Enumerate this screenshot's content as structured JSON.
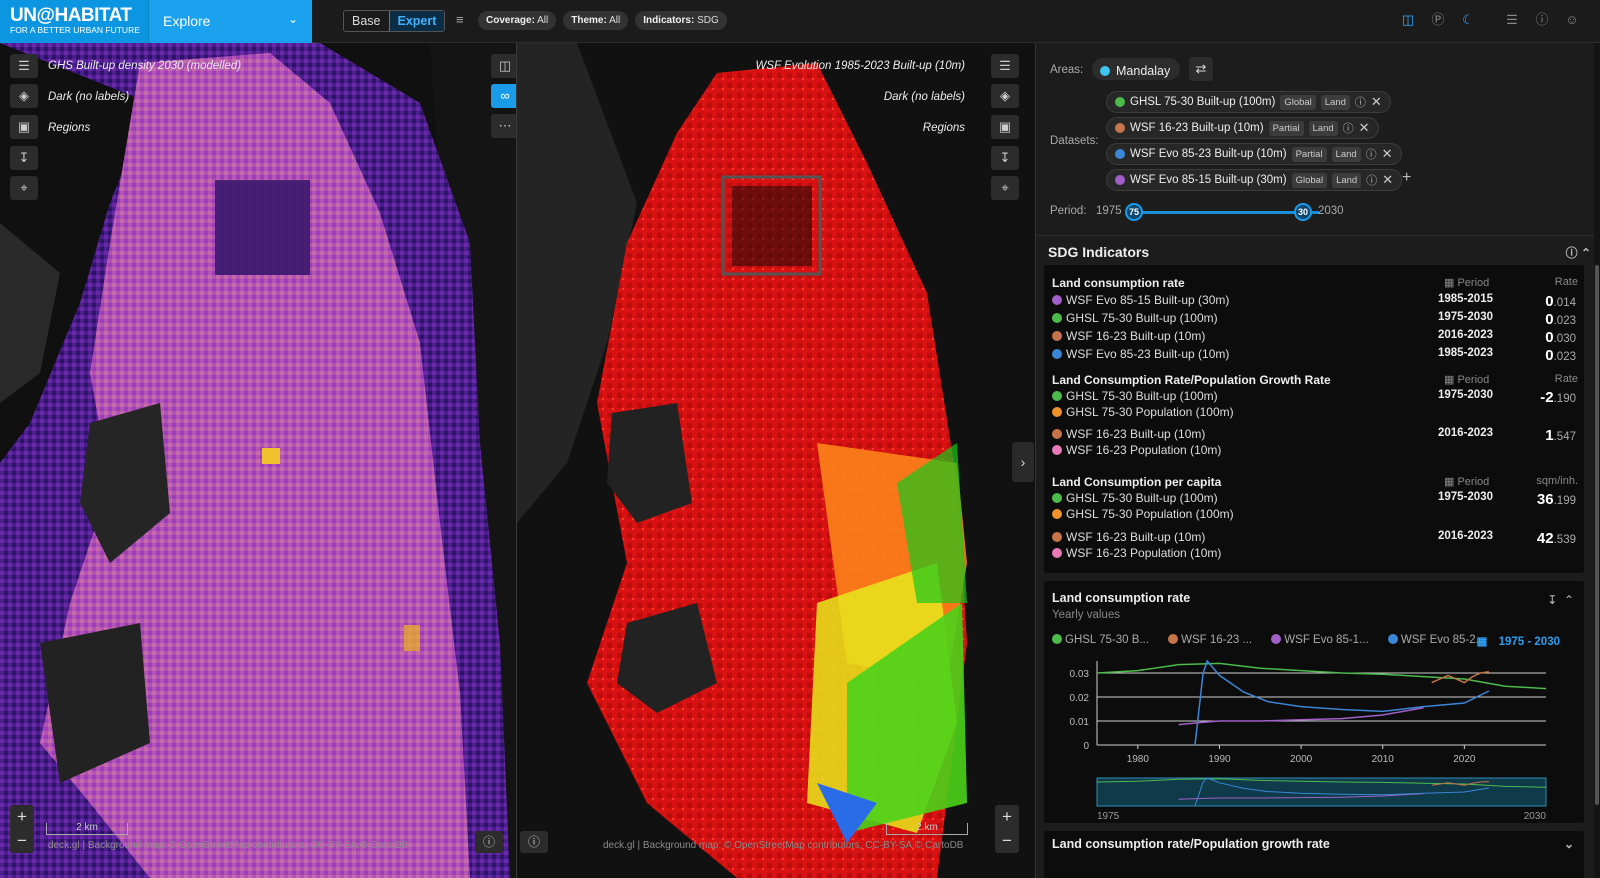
{
  "header": {
    "brand_name": "UN@HABITAT",
    "brand_tagline": "FOR A BETTER URBAN FUTURE",
    "nav_label": "Explore",
    "modes": [
      "Base",
      "Expert"
    ],
    "active_mode": "Expert",
    "chips": [
      {
        "label": "Coverage:",
        "value": "All"
      },
      {
        "label": "Theme:",
        "value": "All"
      },
      {
        "label": "Indicators:",
        "value": "SDG"
      }
    ]
  },
  "map_left": {
    "layer_label": "GHS Built-up density 2030 (modelled)",
    "basemap_label": "Dark (no labels)",
    "regions_label": "Regions",
    "scale_label": "2 km",
    "attribution": "deck.gl | Background map: © OpenStreetMap contributors, CC-BY-SA,© CartoDB"
  },
  "map_right": {
    "layer_label": "WSF Evolution 1985-2023 Built-up (10m)",
    "basemap_label": "Dark (no labels)",
    "regions_label": "Regions",
    "scale_label": "2 km",
    "attribution": "deck.gl | Background map: © OpenStreetMap contributors, CC-BY-SA,© CartoDB"
  },
  "panel": {
    "areas_label": "Areas:",
    "area": {
      "name": "Mandalay",
      "color": "#3ec6f0"
    },
    "datasets_label": "Datasets:",
    "datasets": [
      {
        "name": "GHSL 75-30 Built-up (100m)",
        "coverage": "Global",
        "theme": "Land",
        "color": "#4cbb4c"
      },
      {
        "name": "WSF 16-23 Built-up (10m)",
        "coverage": "Partial",
        "theme": "Land",
        "color": "#c8744a"
      },
      {
        "name": "WSF Evo 85-23 Built-up (10m)",
        "coverage": "Partial",
        "theme": "Land",
        "color": "#3b86d6"
      },
      {
        "name": "WSF Evo 85-15 Built-up (30m)",
        "coverage": "Global",
        "theme": "Land",
        "color": "#a060c8"
      }
    ],
    "period_label": "Period:",
    "period_min": "1975",
    "period_max": "2030",
    "period_start": "75",
    "period_end": "30",
    "sdg_title": "SDG Indicators"
  },
  "indicators": [
    {
      "title": "Land consumption rate",
      "period_head": "Period",
      "unit_head": "Rate",
      "rows": [
        {
          "names": [
            "WSF Evo 85-15 Built-up (30m)"
          ],
          "colors": [
            "#a060c8"
          ],
          "period": "1985-2015",
          "int": "0",
          "dec": ".014"
        },
        {
          "names": [
            "GHSL 75-30 Built-up (100m)"
          ],
          "colors": [
            "#4cbb4c"
          ],
          "period": "1975-2030",
          "int": "0",
          "dec": ".023"
        },
        {
          "names": [
            "WSF 16-23 Built-up (10m)"
          ],
          "colors": [
            "#c8744a"
          ],
          "period": "2016-2023",
          "int": "0",
          "dec": ".030"
        },
        {
          "names": [
            "WSF Evo 85-23 Built-up (10m)"
          ],
          "colors": [
            "#3b86d6"
          ],
          "period": "1985-2023",
          "int": "0",
          "dec": ".023"
        }
      ]
    },
    {
      "title": "Land Consumption Rate/Population Growth Rate",
      "period_head": "Period",
      "unit_head": "Rate",
      "rows": [
        {
          "names": [
            "GHSL 75-30 Built-up (100m)",
            "GHSL 75-30 Population (100m)"
          ],
          "colors": [
            "#4cbb4c",
            "#f0922c"
          ],
          "period": "1975-2030",
          "int": "-2",
          "dec": ".190"
        },
        {
          "names": [
            "WSF 16-23 Built-up (10m)",
            "WSF 16-23 Population (10m)"
          ],
          "colors": [
            "#c8744a",
            "#e87ab8"
          ],
          "period": "2016-2023",
          "int": "1",
          "dec": ".547"
        }
      ]
    },
    {
      "title": "Land Consumption per capita",
      "period_head": "Period",
      "unit_head": "sqm/inh.",
      "rows": [
        {
          "names": [
            "GHSL 75-30 Built-up (100m)",
            "GHSL 75-30 Population (100m)"
          ],
          "colors": [
            "#4cbb4c",
            "#f0922c"
          ],
          "period": "1975-2030",
          "int": "36",
          "dec": ".199"
        },
        {
          "names": [
            "WSF 16-23 Built-up (10m)",
            "WSF 16-23 Population (10m)"
          ],
          "colors": [
            "#c8744a",
            "#e87ab8"
          ],
          "period": "2016-2023",
          "int": "42",
          "dec": ".539"
        }
      ]
    }
  ],
  "chart_card": {
    "title": "Land consumption rate",
    "subtitle": "Yearly values",
    "legend": [
      {
        "label": "GHSL 75-30 B...",
        "color": "#4cbb4c"
      },
      {
        "label": "WSF 16-23 ...",
        "color": "#c8744a"
      },
      {
        "label": "WSF Evo 85-1...",
        "color": "#a060c8"
      },
      {
        "label": "WSF Evo 85-2...",
        "color": "#3b86d6"
      }
    ],
    "range_label": "1975 - 2030",
    "brush_start": "1975",
    "brush_end": "2030"
  },
  "chart_data": {
    "type": "line",
    "title": "",
    "xlabel": "",
    "ylabel": "",
    "xlim": [
      1975,
      2030
    ],
    "ylim": [
      0,
      0.035
    ],
    "x_ticks": [
      1980,
      1990,
      2000,
      2010,
      2020
    ],
    "y_ticks": [
      0,
      0.01,
      0.02,
      0.03
    ],
    "y_tick_labels": [
      "0",
      "0.01",
      "0.02",
      "0.03"
    ],
    "grid": true,
    "series": [
      {
        "name": "GHSL 75-30 B...",
        "color": "#4cbb4c",
        "points": [
          [
            1975,
            0.03
          ],
          [
            1980,
            0.031
          ],
          [
            1985,
            0.0335
          ],
          [
            1990,
            0.034
          ],
          [
            1995,
            0.032
          ],
          [
            2000,
            0.031
          ],
          [
            2005,
            0.03
          ],
          [
            2010,
            0.0295
          ],
          [
            2015,
            0.0285
          ],
          [
            2020,
            0.0275
          ],
          [
            2025,
            0.0245
          ],
          [
            2030,
            0.0235
          ]
        ]
      },
      {
        "name": "WSF 16-23 ...",
        "color": "#c8744a",
        "points": [
          [
            2016,
            0.026
          ],
          [
            2017,
            0.0275
          ],
          [
            2018,
            0.029
          ],
          [
            2019,
            0.0275
          ],
          [
            2020,
            0.026
          ],
          [
            2021,
            0.0285
          ],
          [
            2022,
            0.03
          ],
          [
            2023,
            0.0305
          ]
        ]
      },
      {
        "name": "WSF Evo 85-1...",
        "color": "#a060c8",
        "points": [
          [
            1985,
            0.0085
          ],
          [
            1988,
            0.0095
          ],
          [
            1990,
            0.01
          ],
          [
            1995,
            0.01
          ],
          [
            2000,
            0.0105
          ],
          [
            2005,
            0.011
          ],
          [
            2010,
            0.0125
          ],
          [
            2015,
            0.0155
          ]
        ]
      },
      {
        "name": "WSF Evo 85-2...",
        "color": "#3b86d6",
        "points": [
          [
            1987,
            0
          ],
          [
            1988,
            0.03
          ],
          [
            1988.5,
            0.035
          ],
          [
            1990,
            0.029
          ],
          [
            1993,
            0.022
          ],
          [
            1996,
            0.018
          ],
          [
            2000,
            0.016
          ],
          [
            2005,
            0.0148
          ],
          [
            2010,
            0.014
          ],
          [
            2015,
            0.016
          ],
          [
            2020,
            0.0175
          ],
          [
            2023,
            0.0225
          ]
        ]
      }
    ]
  },
  "bottom_card": {
    "title": "Land consumption rate/Population growth rate"
  }
}
